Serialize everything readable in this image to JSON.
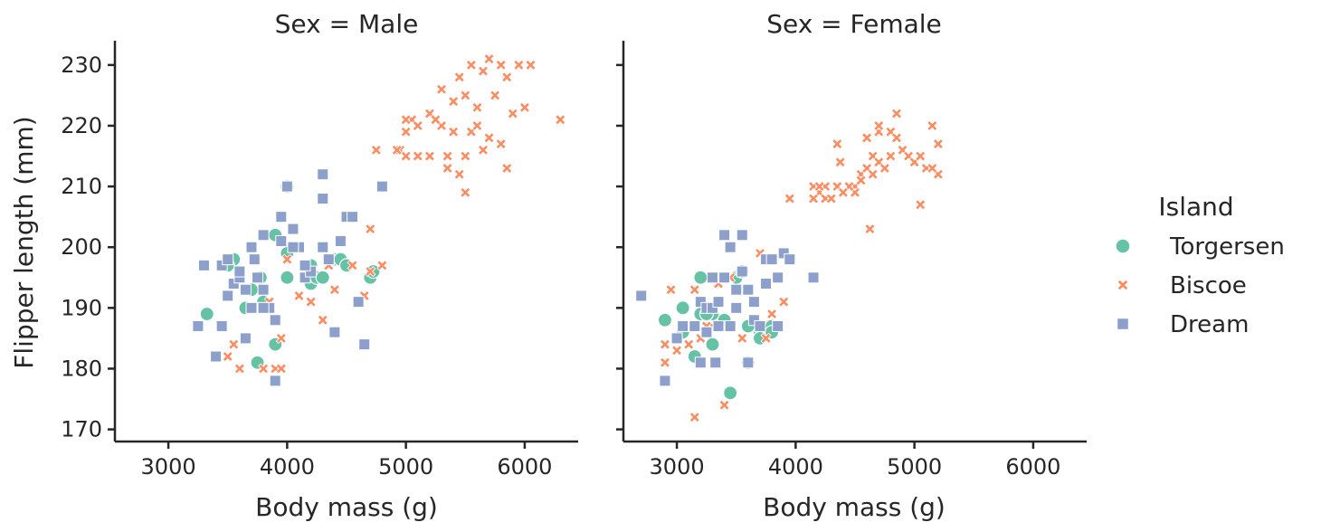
{
  "chart_data": {
    "type": "scatter",
    "facet_titles": [
      "Sex = Male",
      "Sex = Female"
    ],
    "xlabel": "Body mass (g)",
    "ylabel": "Flipper length (mm)",
    "xlim": [
      2550,
      6450
    ],
    "ylim": [
      168,
      234
    ],
    "xticks": [
      3000,
      4000,
      5000,
      6000
    ],
    "yticks": [
      170,
      180,
      190,
      200,
      210,
      220,
      230
    ],
    "legend": {
      "title": "Island",
      "placement": "right",
      "entries": [
        {
          "name": "Torgersen",
          "color": "#66c2a5",
          "marker": "circle"
        },
        {
          "name": "Biscoe",
          "color": "#fc8d62",
          "marker": "x"
        },
        {
          "name": "Dream",
          "color": "#8da0cb",
          "marker": "square"
        }
      ]
    },
    "panels": [
      {
        "title": "Sex = Male",
        "series": [
          {
            "name": "Torgersen",
            "x": [
              3325,
              3550,
              3500,
              3650,
              3750,
              3800,
              3900,
              4000,
              4000,
              4200,
              4200,
              4250,
              4300,
              4400,
              4450,
              4500,
              4700,
              4725,
              3775,
              4000,
              3900,
              3700
            ],
            "y": [
              189,
              198,
              197,
              190,
              181,
              191,
              184,
              195,
              210,
              197,
              194,
              195,
              195,
              198,
              198,
              197,
              195,
              196,
              195,
              199,
              202,
              193
            ]
          },
          {
            "name": "Biscoe",
            "x": [
              5550,
              5700,
              5800,
              5950,
              6050,
              5650,
              5850,
              5450,
              5300,
              5500,
              5400,
              5600,
              5750,
              6000,
              5900,
              5200,
              5050,
              5000,
              5100,
              5300,
              5400,
              5550,
              5250,
              5700,
              5800,
              6300,
              5500,
              5350,
              5200,
              5100,
              4950,
              5000,
              5650,
              5350,
              5500,
              5850,
              5600,
              5450,
              5000,
              4925,
              4750,
              4700,
              4800,
              4550,
              4350,
              4300,
              4400,
              4200,
              4100,
              4000,
              3950,
              3900,
              4300,
              3550,
              3600,
              3800,
              3950,
              3850,
              3500,
              4650,
              4700
            ],
            "y": [
              230,
              231,
              230,
              230,
              230,
              229,
              228,
              228,
              226,
              225,
              224,
              223,
              225,
              223,
              222,
              222,
              221,
              221,
              220,
              220,
              219,
              219,
              221,
              218,
              217,
              221,
              215,
              215,
              215,
              215,
              216,
              215,
              216,
              213,
              209,
              213,
              220,
              212,
              219,
              216,
              216,
              203,
              197,
              197,
              197,
              188,
              193,
              191,
              192,
              198,
              185,
              180,
              188,
              184,
              180,
              180,
              180,
              191,
              182,
              192,
              196
            ]
          },
          {
            "name": "Dream",
            "x": [
              3250,
              3300,
              3400,
              3450,
              3500,
              3550,
              3600,
              3650,
              3700,
              3725,
              3750,
              3800,
              3850,
              3900,
              3950,
              4000,
              4050,
              4100,
              4150,
              4200,
              4300,
              4300,
              4350,
              4400,
              4450,
              4500,
              4550,
              4600,
              4650,
              4800,
              3900,
              3800,
              3650,
              3700,
              3800,
              3950,
              4050,
              4150,
              4300,
              3600,
              3450,
              3500
            ],
            "y": [
              187,
              197,
              182,
              197,
              198,
              194,
              195,
              193,
              190,
              198,
              195,
              193,
              190,
              178,
              201,
              210,
              203,
              200,
              195,
              196,
              212,
              208,
              198,
              186,
              201,
              205,
              205,
              191,
              184,
              210,
              188,
              190,
              185,
              200,
              202,
              205,
              200,
              197,
              200,
              196,
              187,
              192
            ]
          }
        ]
      },
      {
        "title": "Sex = Female",
        "series": [
          {
            "name": "Torgersen",
            "x": [
              3450,
              2900,
              3050,
              3150,
              3200,
              3300,
              3400,
              3500,
              3550,
              3600,
              3700,
              3800,
              3050,
              3250,
              3600,
              3300,
              3700,
              3150,
              3200,
              3800
            ],
            "y": [
              176,
              188,
              190,
              182,
              189,
              189,
              188,
              195,
              196,
              181,
              186,
              187,
              186,
              189,
              187,
              184,
              185,
              182,
              195,
              186
            ]
          },
          {
            "name": "Biscoe",
            "x": [
              4150,
              4200,
              4250,
              4300,
              4350,
              4400,
              4450,
              4500,
              4550,
              4600,
              4650,
              4700,
              4750,
              4800,
              4850,
              4900,
              4950,
              5000,
              5050,
              5100,
              5150,
              5200,
              5200,
              4800,
              4850,
              4700,
              4600,
              4650,
              4550,
              4500,
              4450,
              4400,
              4375,
              4350,
              4250,
              4200,
              4150,
              4300,
              4700,
              3950,
              4625,
              5050,
              5150,
              3900,
              3800,
              3700,
              3550,
              3450,
              3400,
              3300,
              3200,
              3150,
              3100,
              2900,
              2950,
              2900,
              3000,
              3250,
              3150,
              3350,
              3500,
              3750
            ],
            "y": [
              210,
              209,
              210,
              208,
              210,
              209,
              210,
              210,
              212,
              213,
              215,
              214,
              213,
              215,
              222,
              216,
              215,
              214,
              215,
              213,
              220,
              217,
              212,
              219,
              218,
              219,
              218,
              212,
              211,
              209,
              210,
              209,
              214,
              217,
              208,
              210,
              208,
              208,
              220,
              208,
              203,
              207,
              213,
              191,
              189,
              199,
              185,
              195,
              174,
              187,
              185,
              172,
              184,
              181,
              193,
              184,
              183,
              187,
              193,
              194,
              193,
              185
            ]
          },
          {
            "name": "Dream",
            "x": [
              2700,
              2900,
              3000,
              3050,
              3150,
              3200,
              3250,
              3300,
              3325,
              3350,
              3400,
              3450,
              3500,
              3550,
              3600,
              3650,
              3700,
              3750,
              3800,
              3850,
              3900,
              3950,
              4150,
              3500,
              3600,
              3550,
              3300,
              3250,
              3450,
              3400,
              3650,
              3750,
              3850,
              3200,
              3350
            ],
            "y": [
              192,
              178,
              185,
              187,
              187,
              191,
              190,
              195,
              181,
              187,
              202,
              187,
              193,
              202,
              181,
              188,
              187,
              198,
              198,
              195,
              199,
              198,
              195,
              190,
              193,
              196,
              190,
              186,
              200,
              195,
              191,
              194,
              187,
              181,
              191
            ]
          }
        ]
      }
    ]
  }
}
